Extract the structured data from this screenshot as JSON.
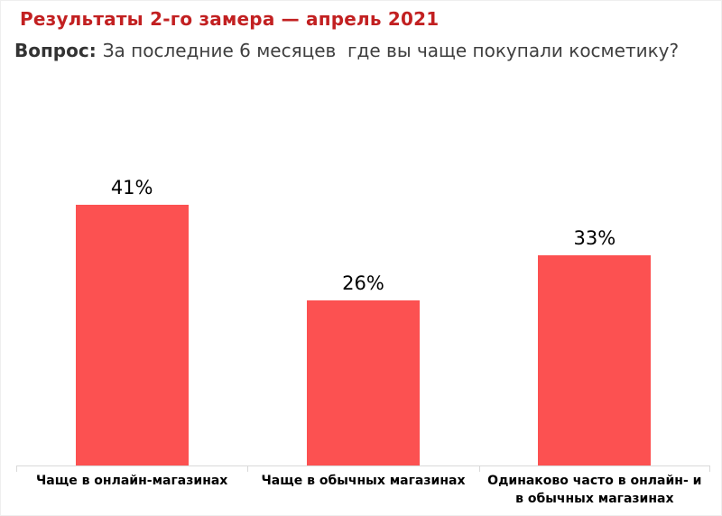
{
  "page": {
    "background": "#ffffff",
    "frame_border_color": "#efefef"
  },
  "header": {
    "title": "Результаты 2-го замера — апрель 2021",
    "title_color": "#c22021",
    "question_label": "Вопрос:",
    "question_label_color": "#333333",
    "question_text": "За последние 6 месяцев  где вы чаще покупали косметику?",
    "question_text_color": "#3f3f3f"
  },
  "chart_data": {
    "type": "bar",
    "categories": [
      "Чаще в онлайн-магазинах",
      "Чаще в обычных магазинах",
      "Одинаково часто в онлайн- и в обычных магазинах"
    ],
    "values": [
      41,
      26,
      33
    ],
    "value_labels": [
      "41%",
      "26%",
      "33%"
    ],
    "title": "",
    "xlabel": "",
    "ylabel": "",
    "ylim": [
      0,
      45
    ],
    "grid": false,
    "legend": false,
    "bar_color": "#fc5151",
    "axis_color": "#d9d9d9",
    "value_label_color": "#000000",
    "category_label_color": "#000000"
  }
}
